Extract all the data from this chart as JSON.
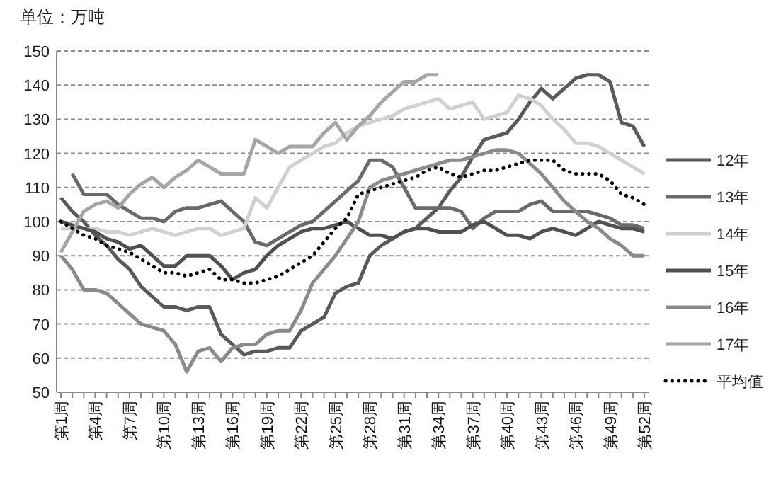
{
  "chart_data": {
    "type": "line",
    "ylabel": "单位：万吨",
    "categories": [
      "第1周",
      null,
      null,
      "第4周",
      null,
      null,
      "第7周",
      null,
      null,
      "第10周",
      null,
      null,
      "第13周",
      null,
      null,
      "第16周",
      null,
      null,
      "第19周",
      null,
      null,
      "第22周",
      null,
      null,
      "第25周",
      null,
      null,
      "第28周",
      null,
      null,
      "第31周",
      null,
      null,
      "第34周",
      null,
      null,
      "第37周",
      null,
      null,
      "第40周",
      null,
      null,
      "第43周",
      null,
      null,
      "第46周",
      null,
      null,
      "第49周",
      null,
      null,
      "第52周"
    ],
    "ylim": [
      50,
      150
    ],
    "yticks": [
      50,
      60,
      70,
      80,
      90,
      100,
      110,
      120,
      130,
      140,
      150
    ],
    "grid": "y",
    "legend": "right",
    "series": [
      {
        "name": "12年",
        "color": "#5a5a5a",
        "values": [
          107,
          103,
          100,
          96,
          93,
          89,
          86,
          81,
          78,
          75,
          75,
          74,
          75,
          75,
          67,
          64,
          61,
          62,
          62,
          63,
          63,
          68,
          70,
          72,
          79,
          81,
          82,
          90,
          93,
          95,
          97,
          98,
          101,
          104,
          109,
          113,
          119,
          124,
          125,
          126,
          130,
          135,
          139,
          136,
          139,
          142,
          143,
          143,
          141,
          129,
          128,
          122
        ]
      },
      {
        "name": "13年",
        "color": "#6a6a6a",
        "values": [
          null,
          114,
          108,
          108,
          108,
          105,
          103,
          101,
          101,
          100,
          103,
          104,
          104,
          105,
          106,
          103,
          100,
          94,
          93,
          95,
          97,
          99,
          100,
          103,
          106,
          109,
          112,
          118,
          118,
          116,
          110,
          104,
          104,
          104,
          104,
          103,
          98,
          101,
          103,
          103,
          103,
          105,
          106,
          103,
          103,
          103,
          103,
          102,
          101,
          99,
          99,
          98
        ]
      },
      {
        "name": "14年",
        "color": "#d0d0d0",
        "values": [
          98,
          98,
          98,
          98,
          97,
          97,
          96,
          97,
          98,
          97,
          96,
          97,
          98,
          98,
          96,
          97,
          98,
          107,
          104,
          110,
          116,
          118,
          120,
          122,
          123,
          126,
          128,
          129,
          130,
          131,
          133,
          134,
          135,
          136,
          133,
          134,
          135,
          130,
          131,
          132,
          137,
          136,
          134,
          130,
          127,
          123,
          123,
          122,
          120,
          118,
          116,
          114
        ]
      },
      {
        "name": "15年",
        "color": "#505050",
        "values": [
          100,
          99,
          98,
          97,
          95,
          94,
          92,
          93,
          90,
          87,
          87,
          90,
          90,
          90,
          87,
          83,
          85,
          86,
          90,
          93,
          95,
          97,
          98,
          98,
          99,
          100,
          98,
          96,
          96,
          95,
          97,
          98,
          98,
          97,
          97,
          97,
          99,
          100,
          98,
          96,
          96,
          95,
          97,
          98,
          97,
          96,
          98,
          100,
          99,
          98,
          98,
          97
        ]
      },
      {
        "name": "16年",
        "color": "#8a8a8a",
        "values": [
          90,
          86,
          80,
          80,
          79,
          76,
          73,
          70,
          69,
          68,
          64,
          56,
          62,
          63,
          59,
          63,
          64,
          64,
          67,
          68,
          68,
          74,
          82,
          86,
          90,
          95,
          100,
          110,
          112,
          113,
          114,
          115,
          116,
          117,
          118,
          118,
          119,
          120,
          121,
          121,
          120,
          117,
          114,
          110,
          106,
          103,
          100,
          98,
          95,
          93,
          90,
          90
        ]
      },
      {
        "name": "17年",
        "color": "#a6a6a6",
        "values": [
          91,
          97,
          103,
          105,
          106,
          104,
          108,
          111,
          113,
          110,
          113,
          115,
          118,
          116,
          114,
          114,
          114,
          124,
          122,
          120,
          122,
          122,
          122,
          126,
          129,
          124,
          128,
          131,
          135,
          138,
          141,
          141,
          143,
          143,
          null,
          null,
          null,
          null,
          null,
          null,
          null,
          null,
          null,
          null,
          null,
          null,
          null,
          null,
          null,
          null,
          null,
          null
        ]
      },
      {
        "name": "平均值",
        "color": "#000000",
        "line_style": "dotted",
        "values": [
          100,
          98,
          96,
          95,
          93,
          92,
          91,
          89,
          87,
          85,
          85,
          84,
          85,
          86,
          83,
          83,
          82,
          82,
          83,
          84,
          86,
          88,
          90,
          94,
          98,
          101,
          108,
          109,
          110,
          111,
          112,
          113,
          115,
          116,
          114,
          113,
          114,
          115,
          115,
          116,
          117,
          118,
          118,
          118,
          115,
          114,
          114,
          114,
          112,
          108,
          107,
          105
        ]
      }
    ]
  }
}
